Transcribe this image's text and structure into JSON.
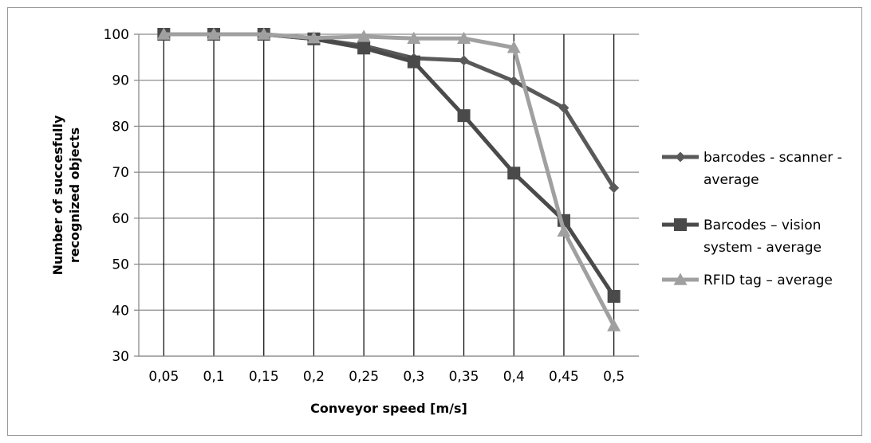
{
  "chart_data": {
    "type": "line",
    "xlabel": "Conveyor speed [m/s]",
    "ylabel_lines": [
      "Number of succesfully",
      "recognized objects"
    ],
    "categories": [
      "0,05",
      "0,1",
      "0,15",
      "0,2",
      "0,25",
      "0,3",
      "0,35",
      "0,4",
      "0,45",
      "0,5"
    ],
    "ylim": [
      30,
      100
    ],
    "yticks": [
      30,
      40,
      50,
      60,
      70,
      80,
      90,
      100
    ],
    "grid": true,
    "legend_position": "right",
    "series": [
      {
        "name_lines": [
          "barcodes - scanner -",
          "average"
        ],
        "marker": "diamond",
        "color": "#595959",
        "values": [
          100,
          100,
          100,
          99,
          97.5,
          94.8,
          94.3,
          89.8,
          84,
          66.6
        ]
      },
      {
        "name_lines": [
          "Barcodes – vision",
          "system - average"
        ],
        "marker": "square",
        "color": "#4a4a4a",
        "values": [
          100,
          100,
          100,
          99,
          97,
          94,
          82.3,
          69.8,
          59.5,
          43
        ]
      },
      {
        "name_lines": [
          "RFID tag – average"
        ],
        "marker": "triangle",
        "color": "#a0a0a0",
        "values": [
          100,
          100,
          100,
          99.2,
          99.5,
          99.1,
          99.1,
          97.1,
          57.2,
          36.6
        ]
      }
    ]
  }
}
